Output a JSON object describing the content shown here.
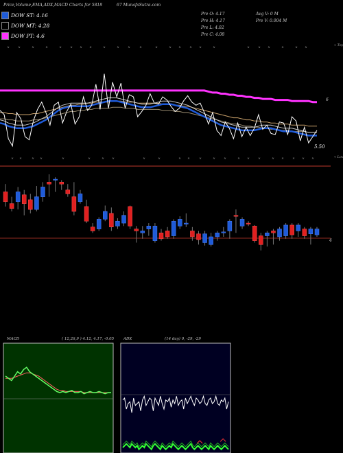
{
  "header": {
    "title": "Price,Volume,EMA,ADX,MACD Charts for 5818",
    "site": "67 MunafaSutra.com"
  },
  "legend": [
    {
      "label": "DOW ST: 4.16",
      "color": "#1f5bd8"
    },
    {
      "label": "DOW MT: 4.28",
      "color": "#cccccc"
    },
    {
      "label": "DOW PT: 4.6",
      "color": "#ff33ff"
    }
  ],
  "stats": {
    "pre_open": "Pre  O: 4.17",
    "pre_high": "Pre  H: 4.17",
    "pre_low": "Pre  L: 4.02",
    "pre_close": "Pre  C: 4.08",
    "avg_vol": "Avg V: 0  M",
    "pre_vol": "Pre  V: 0.004  M"
  },
  "chart_data": [
    {
      "type": "line",
      "name": "price-ema",
      "axis_labels": {
        "top": "« Tops",
        "bottom": "« Lows",
        "mid": "6",
        "low_value": "5.50"
      },
      "price": [
        5.72,
        5.68,
        5.45,
        5.38,
        5.7,
        5.64,
        5.47,
        5.44,
        5.62,
        5.73,
        5.8,
        5.7,
        5.58,
        5.77,
        5.8,
        5.6,
        5.71,
        5.78,
        5.59,
        5.66,
        5.85,
        5.72,
        5.77,
        5.97,
        5.73,
        6.07,
        5.74,
        5.99,
        5.85,
        5.98,
        5.74,
        5.87,
        5.85,
        5.66,
        5.71,
        5.77,
        5.88,
        5.79,
        5.78,
        5.85,
        5.82,
        5.76,
        5.71,
        5.74,
        5.81,
        5.86,
        5.8,
        5.77,
        5.79,
        5.7,
        5.59,
        5.7,
        5.53,
        5.48,
        5.61,
        5.55,
        5.45,
        5.6,
        5.47,
        5.56,
        5.48,
        5.55,
        5.68,
        5.54,
        5.58,
        5.5,
        5.49,
        5.61,
        5.6,
        5.49,
        5.66,
        5.62,
        5.43,
        5.56,
        5.41,
        5.47,
        5.53
      ],
      "ema_st": [
        5.6,
        5.59,
        5.57,
        5.56,
        5.55,
        5.55,
        5.55,
        5.56,
        5.57,
        5.59,
        5.61,
        5.63,
        5.66,
        5.69,
        5.72,
        5.74,
        5.75,
        5.76,
        5.76,
        5.76,
        5.76,
        5.76,
        5.77,
        5.78,
        5.79,
        5.8,
        5.81,
        5.81,
        5.81,
        5.8,
        5.79,
        5.78,
        5.77,
        5.76,
        5.75,
        5.75,
        5.75,
        5.76,
        5.77,
        5.78,
        5.78,
        5.78,
        5.77,
        5.76,
        5.75,
        5.74,
        5.72,
        5.7,
        5.68,
        5.66,
        5.64,
        5.62,
        5.6,
        5.58,
        5.57,
        5.56,
        5.55,
        5.54,
        5.53,
        5.53,
        5.53,
        5.53,
        5.54,
        5.55,
        5.55,
        5.55,
        5.54,
        5.53,
        5.52,
        5.52,
        5.52,
        5.51,
        5.5,
        5.49,
        5.48,
        5.48,
        5.48
      ],
      "ema_mt": [
        5.7,
        5.7,
        5.69,
        5.69,
        5.68,
        5.68,
        5.68,
        5.68,
        5.69,
        5.69,
        5.7,
        5.71,
        5.72,
        5.73,
        5.74,
        5.75,
        5.76,
        5.77,
        5.77,
        5.78,
        5.78,
        5.79,
        5.79,
        5.8,
        5.8,
        5.8,
        5.8,
        5.81,
        5.81,
        5.81,
        5.8,
        5.8,
        5.8,
        5.79,
        5.79,
        5.79,
        5.79,
        5.79,
        5.79,
        5.78,
        5.78,
        5.78,
        5.77,
        5.77,
        5.76,
        5.76,
        5.75,
        5.74,
        5.73,
        5.72,
        5.71,
        5.7,
        5.69,
        5.68,
        5.67,
        5.66,
        5.65,
        5.65,
        5.64,
        5.63,
        5.63,
        5.62,
        5.62,
        5.61,
        5.61,
        5.6,
        5.6,
        5.59,
        5.59,
        5.59,
        5.58,
        5.58,
        5.58,
        5.58,
        5.57,
        5.57,
        5.57
      ],
      "ema_pt": [
        5.91,
        5.91,
        5.91,
        5.91,
        5.91,
        5.91,
        5.91,
        5.91,
        5.91,
        5.91,
        5.91,
        5.91,
        5.91,
        5.91,
        5.91,
        5.91,
        5.91,
        5.91,
        5.91,
        5.91,
        5.91,
        5.91,
        5.91,
        5.91,
        5.91,
        5.91,
        5.91,
        5.91,
        5.91,
        5.91,
        5.91,
        5.91,
        5.91,
        5.91,
        5.91,
        5.91,
        5.91,
        5.91,
        5.91,
        5.91,
        5.91,
        5.91,
        5.91,
        5.91,
        5.91,
        5.91,
        5.91,
        5.91,
        5.91,
        5.91,
        5.9,
        5.89,
        5.89,
        5.88,
        5.88,
        5.87,
        5.87,
        5.86,
        5.86,
        5.85,
        5.85,
        5.84,
        5.84,
        5.83,
        5.83,
        5.83,
        5.82,
        5.82,
        5.82,
        5.82,
        5.81,
        5.81,
        5.81,
        5.81,
        5.81,
        5.8,
        5.8
      ],
      "ylim": [
        5.3,
        6.25
      ]
    },
    {
      "type": "bar",
      "name": "candles",
      "axis_labels": {
        "value": "4"
      },
      "candles": [
        {
          "o": 4.6,
          "c": 4.5,
          "h": 4.68,
          "l": 4.45
        },
        {
          "o": 4.48,
          "c": 4.43,
          "h": 4.55,
          "l": 4.4
        },
        {
          "o": 4.5,
          "c": 4.6,
          "h": 4.65,
          "l": 4.42
        },
        {
          "o": 4.57,
          "c": 4.48,
          "h": 4.62,
          "l": 4.36
        },
        {
          "o": 4.52,
          "c": 4.42,
          "h": 4.58,
          "l": 4.38
        },
        {
          "o": 4.42,
          "c": 4.55,
          "h": 4.66,
          "l": 4.4
        },
        {
          "o": 4.55,
          "c": 4.65,
          "h": 4.7,
          "l": 4.5
        },
        {
          "o": 4.7,
          "c": 4.68,
          "h": 4.78,
          "l": 4.55
        },
        {
          "o": 4.72,
          "c": 4.73,
          "h": 4.75,
          "l": 4.6
        },
        {
          "o": 4.7,
          "c": 4.68,
          "h": 4.72,
          "l": 4.62
        },
        {
          "o": 4.62,
          "c": 4.58,
          "h": 4.68,
          "l": 4.55
        },
        {
          "o": 4.55,
          "c": 4.4,
          "h": 4.7,
          "l": 4.36
        },
        {
          "o": 4.5,
          "c": 4.58,
          "h": 4.62,
          "l": 4.48
        },
        {
          "o": 4.45,
          "c": 4.3,
          "h": 4.52,
          "l": 4.28
        },
        {
          "o": 4.24,
          "c": 4.2,
          "h": 4.28,
          "l": 4.18
        },
        {
          "o": 4.22,
          "c": 4.32,
          "h": 4.34,
          "l": 4.2
        },
        {
          "o": 4.32,
          "c": 4.4,
          "h": 4.46,
          "l": 4.3
        },
        {
          "o": 4.38,
          "c": 4.24,
          "h": 4.44,
          "l": 4.2
        },
        {
          "o": 4.25,
          "c": 4.3,
          "h": 4.33,
          "l": 4.22
        },
        {
          "o": 4.28,
          "c": 4.36,
          "h": 4.4,
          "l": 4.25
        },
        {
          "o": 4.45,
          "c": 4.25,
          "h": 4.46,
          "l": 4.22
        },
        {
          "o": 4.22,
          "c": 4.2,
          "h": 4.25,
          "l": 4.08
        },
        {
          "o": 4.18,
          "c": 4.2,
          "h": 4.25,
          "l": 4.12
        },
        {
          "o": 4.22,
          "c": 4.25,
          "h": 4.28,
          "l": 4.15
        },
        {
          "o": 4.1,
          "c": 4.25,
          "h": 4.28,
          "l": 4.08
        },
        {
          "o": 4.18,
          "c": 4.12,
          "h": 4.22,
          "l": 4.1
        },
        {
          "o": 4.2,
          "c": 4.14,
          "h": 4.24,
          "l": 4.12
        },
        {
          "o": 4.15,
          "c": 4.3,
          "h": 4.32,
          "l": 4.12
        },
        {
          "o": 4.25,
          "c": 4.32,
          "h": 4.35,
          "l": 4.22
        },
        {
          "o": 4.27,
          "c": 4.28,
          "h": 4.38,
          "l": 4.24
        },
        {
          "o": 4.2,
          "c": 4.14,
          "h": 4.24,
          "l": 4.1
        },
        {
          "o": 4.17,
          "c": 4.11,
          "h": 4.2,
          "l": 4.06
        },
        {
          "o": 4.08,
          "c": 4.17,
          "h": 4.2,
          "l": 4.05
        },
        {
          "o": 4.06,
          "c": 4.14,
          "h": 4.18,
          "l": 4.04
        },
        {
          "o": 4.14,
          "c": 4.18,
          "h": 4.2,
          "l": 4.1
        },
        {
          "o": 4.18,
          "c": 4.19,
          "h": 4.24,
          "l": 4.14
        },
        {
          "o": 4.2,
          "c": 4.3,
          "h": 4.32,
          "l": 4.12
        },
        {
          "o": 4.36,
          "c": 4.35,
          "h": 4.42,
          "l": 4.18
        },
        {
          "o": 4.25,
          "c": 4.32,
          "h": 4.34,
          "l": 4.22
        },
        {
          "o": 4.28,
          "c": 4.27,
          "h": 4.3,
          "l": 4.25
        },
        {
          "o": 4.25,
          "c": 4.1,
          "h": 4.26,
          "l": 4.08
        },
        {
          "o": 4.15,
          "c": 4.06,
          "h": 4.18,
          "l": 4.0
        },
        {
          "o": 4.15,
          "c": 4.18,
          "h": 4.2,
          "l": 4.04
        },
        {
          "o": 4.2,
          "c": 4.18,
          "h": 4.22,
          "l": 4.06
        },
        {
          "o": 4.14,
          "c": 4.22,
          "h": 4.24,
          "l": 4.1
        },
        {
          "o": 4.15,
          "c": 4.26,
          "h": 4.28,
          "l": 4.12
        },
        {
          "o": 4.26,
          "c": 4.16,
          "h": 4.28,
          "l": 4.12
        },
        {
          "o": 4.2,
          "c": 4.26,
          "h": 4.28,
          "l": 4.14
        },
        {
          "o": 4.22,
          "c": 4.15,
          "h": 4.24,
          "l": 4.12
        },
        {
          "o": 4.17,
          "c": 4.22,
          "h": 4.24,
          "l": 4.06
        },
        {
          "o": 4.16,
          "c": 4.22,
          "h": 4.24,
          "l": 4.14
        }
      ],
      "ylim": [
        3.95,
        4.85
      ]
    },
    {
      "type": "line",
      "name": "macd",
      "title": "MACD",
      "params": "( 12,26,9 ) 4.12,  4.17,  -0.05",
      "macd": [
        0.1,
        0.08,
        0.06,
        0.1,
        0.14,
        0.12,
        0.16,
        0.18,
        0.14,
        0.12,
        0.1,
        0.08,
        0.06,
        0.04,
        0.02,
        0.0,
        -0.02,
        -0.04,
        -0.05,
        -0.04,
        -0.05,
        -0.04,
        -0.03,
        -0.05,
        -0.05,
        -0.04,
        -0.06,
        -0.05,
        -0.04,
        -0.05,
        -0.05,
        -0.04,
        -0.05,
        -0.06,
        -0.05,
        -0.05
      ],
      "signal": [
        0.08,
        0.08,
        0.08,
        0.09,
        0.1,
        0.11,
        0.12,
        0.13,
        0.13,
        0.12,
        0.11,
        0.1,
        0.08,
        0.06,
        0.04,
        0.02,
        0.0,
        -0.02,
        -0.03,
        -0.03,
        -0.04,
        -0.04,
        -0.04,
        -0.04,
        -0.04,
        -0.04,
        -0.05,
        -0.05,
        -0.05,
        -0.05,
        -0.05,
        -0.05,
        -0.05,
        -0.05,
        -0.05,
        -0.05
      ],
      "ylim": [
        -0.6,
        0.4
      ]
    },
    {
      "type": "line",
      "name": "adx",
      "title": "ADX",
      "params": "(14 day) 0,  -29,  -29",
      "di_top": [
        29,
        30,
        24,
        27,
        28,
        22,
        30,
        26,
        27,
        28,
        23,
        29,
        31,
        26,
        28,
        30,
        29,
        23,
        30,
        28,
        26,
        31,
        27,
        24,
        29,
        28,
        30,
        25,
        29,
        27,
        31,
        26,
        28,
        29,
        24,
        30,
        27,
        29,
        31,
        28,
        26,
        30,
        29,
        27,
        28,
        31,
        27,
        26,
        29,
        30,
        27,
        28,
        31,
        27,
        26,
        29,
        28,
        30,
        24,
        28
      ],
      "adx": [
        3,
        4,
        5,
        4,
        3,
        5,
        4,
        3,
        4,
        2,
        3,
        4,
        3,
        5,
        4,
        3,
        2,
        4,
        5,
        4,
        3,
        2,
        4,
        3,
        2,
        3,
        4,
        3,
        5,
        4,
        3,
        2,
        3,
        4,
        3,
        2,
        3,
        4,
        5,
        3,
        2,
        3,
        4,
        3,
        2,
        3,
        4,
        3,
        2,
        4,
        3,
        2,
        3,
        4,
        3,
        2,
        3,
        4,
        3,
        2
      ],
      "adx_red": [
        null,
        null,
        null,
        null,
        null,
        null,
        null,
        null,
        null,
        null,
        null,
        null,
        null,
        null,
        null,
        null,
        null,
        null,
        null,
        null,
        null,
        null,
        null,
        null,
        null,
        null,
        null,
        null,
        null,
        null,
        null,
        null,
        null,
        null,
        null,
        null,
        null,
        null,
        null,
        null,
        null,
        null,
        null,
        6,
        null,
        null,
        null,
        null,
        null,
        null,
        null,
        null,
        null,
        null,
        null,
        null,
        7,
        null,
        null,
        null
      ],
      "ylim": [
        0,
        60
      ]
    }
  ]
}
